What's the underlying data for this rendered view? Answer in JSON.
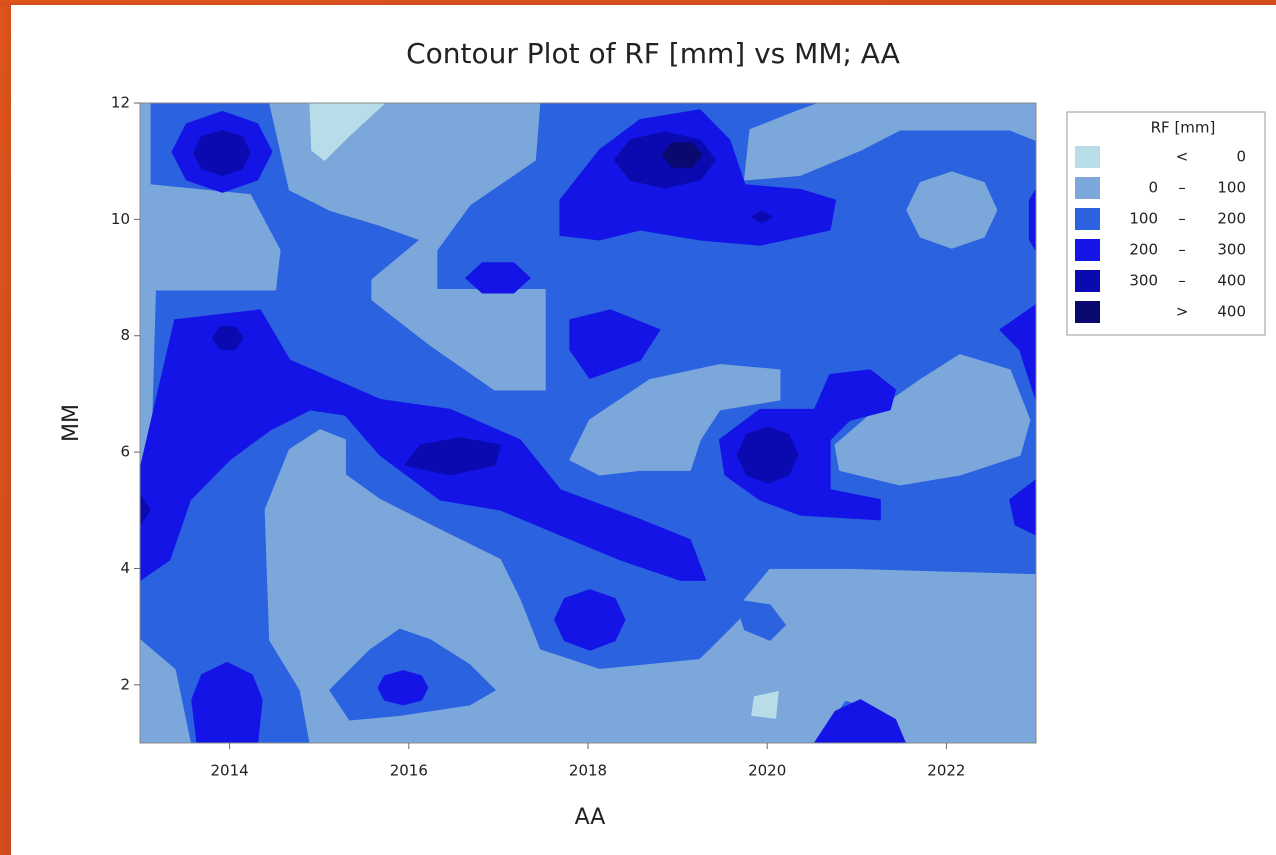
{
  "chart_data": {
    "type": "contour",
    "title": "Contour Plot of RF [mm] vs MM; AA",
    "x_label": "AA",
    "y_label": "MM",
    "xlim": [
      2013,
      2023
    ],
    "ylim": [
      1,
      12
    ],
    "xticks": [
      2014,
      2016,
      2018,
      2020,
      2022
    ],
    "yticks": [
      2,
      4,
      6,
      8,
      10,
      12
    ],
    "legend_title": "RF [mm]",
    "legend_position": "right",
    "bands": [
      {
        "color": "#b8dde8",
        "sign": "<",
        "right": 0
      },
      {
        "color": "#7ba7db",
        "left": 0,
        "sign": "–",
        "right": 100
      },
      {
        "color": "#2a62e0",
        "left": 100,
        "sign": "–",
        "right": 200
      },
      {
        "color": "#1414e6",
        "left": 200,
        "sign": "–",
        "right": 300
      },
      {
        "color": "#0a0ab0",
        "left": 300,
        "sign": "–",
        "right": 400
      },
      {
        "color": "#090970",
        "sign": ">",
        "right": 400
      }
    ],
    "regions": [
      {
        "band": 2,
        "x": [
          2013,
          2023,
          2023,
          2013
        ],
        "y": [
          1,
          1,
          12,
          12
        ]
      },
      {
        "band": 1,
        "x": [
          2013,
          2013.11,
          2013.11,
          2014.23,
          2014.56,
          2014.51,
          2013.17,
          2013.11,
          2013
        ],
        "y": [
          12,
          12,
          10.59,
          10.42,
          9.47,
          8.79,
          8.79,
          5.52,
          5.52
        ]
      },
      {
        "band": 1,
        "x": [
          2014.45,
          2017.46,
          2017.41,
          2016.68,
          2016.31,
          2016.31,
          2017.52,
          2017.52,
          2016.96,
          2016.24,
          2015.59,
          2015.59,
          2016.13,
          2015.68,
          2015.12,
          2014.67
        ],
        "y": [
          12,
          12,
          11.02,
          10.25,
          9.47,
          8.79,
          8.79,
          7.07,
          7.07,
          7.84,
          8.62,
          8.96,
          9.65,
          9.9,
          10.16,
          10.51
        ]
      },
      {
        "band": 0,
        "x": [
          2014.9,
          2015.73,
          2015.34,
          2015.06,
          2014.92
        ],
        "y": [
          12,
          12,
          11.45,
          11.02,
          11.19
        ]
      },
      {
        "band": 1,
        "x": [
          2019.75,
          2019.81,
          2020.37,
          2020.59,
          2023,
          2023,
          2022.71,
          2021.48,
          2021.04,
          2020.37
        ],
        "y": [
          10.68,
          11.54,
          11.88,
          12,
          12,
          11.36,
          11.54,
          11.54,
          11.19,
          10.76
        ]
      },
      {
        "band": 1,
        "x": [
          2022.56,
          2022.42,
          2022.06,
          2021.71,
          2021.56,
          2021.71,
          2022.06,
          2022.42
        ],
        "y": [
          10.16,
          10.63,
          10.81,
          10.63,
          10.16,
          9.7,
          9.51,
          9.7
        ]
      },
      {
        "band": 1,
        "x": [
          2017.8,
          2018.02,
          2018.69,
          2019.47,
          2020.14,
          2020.14,
          2019.47,
          2019.25,
          2019.14,
          2018.58,
          2018.13
        ],
        "y": [
          5.87,
          6.55,
          7.24,
          7.5,
          7.41,
          6.9,
          6.73,
          6.21,
          5.69,
          5.69,
          5.61
        ]
      },
      {
        "band": 1,
        "x": [
          2020.76,
          2021.15,
          2021.71,
          2022.15,
          2022.71,
          2022.93,
          2022.82,
          2022.15,
          2021.48,
          2020.81
        ],
        "y": [
          6.12,
          6.64,
          7.24,
          7.67,
          7.41,
          6.55,
          5.95,
          5.61,
          5.44,
          5.69
        ]
      },
      {
        "band": 1,
        "x": [
          2014.4,
          2014.67,
          2015.01,
          2015.29,
          2015.29,
          2015.68,
          2016.35,
          2017.02,
          2017.24,
          2017.46,
          2018.13,
          2019.25,
          2019.7,
          2019.75,
          2020.03,
          2020.92,
          2023,
          2023,
          2021.54,
          2021.26,
          2020.87,
          2020.53,
          2014.9,
          2014.79,
          2014.45
        ],
        "y": [
          5.01,
          6.04,
          6.38,
          6.21,
          5.61,
          5.18,
          4.66,
          4.15,
          3.46,
          2.6,
          2.26,
          2.43,
          3.12,
          3.46,
          3.98,
          3.98,
          3.89,
          1,
          1,
          1.57,
          1.74,
          1,
          1,
          1.91,
          2.77
        ]
      },
      {
        "band": 1,
        "x": [
          2013,
          2013.39,
          2013.56,
          2013
        ],
        "y": [
          2.77,
          2.26,
          1,
          1
        ]
      },
      {
        "band": 2,
        "x": [
          2015.12,
          2015.57,
          2015.9,
          2016.24,
          2016.68,
          2016.96,
          2016.68,
          2015.9,
          2015.34
        ],
        "y": [
          1.91,
          2.6,
          2.95,
          2.77,
          2.34,
          1.91,
          1.66,
          1.48,
          1.4
        ]
      },
      {
        "band": 3,
        "x": [
          2016.21,
          2016.14,
          2015.94,
          2015.73,
          2015.66,
          2015.73,
          2015.94,
          2016.14
        ],
        "y": [
          1.95,
          2.15,
          2.24,
          2.15,
          1.95,
          1.74,
          1.66,
          1.74
        ]
      },
      {
        "band": 2,
        "x": [
          2019.64,
          2020.03,
          2020.2,
          2020.03,
          2019.75
        ],
        "y": [
          3.46,
          3.37,
          3.03,
          2.77,
          2.95
        ]
      },
      {
        "band": 0,
        "x": [
          2019.86,
          2020.12,
          2020.09,
          2019.83
        ],
        "y": [
          1.79,
          1.88,
          1.43,
          1.48
        ]
      },
      {
        "band": 3,
        "x": [
          2014.47,
          2014.31,
          2013.92,
          2013.52,
          2013.36,
          2013.52,
          2013.92,
          2014.31
        ],
        "y": [
          11.16,
          11.64,
          11.85,
          11.64,
          11.16,
          10.68,
          10.47,
          10.68
        ]
      },
      {
        "band": 4,
        "x": [
          2014.23,
          2014.14,
          2013.92,
          2013.69,
          2013.6,
          2013.69,
          2013.92,
          2014.14
        ],
        "y": [
          11.14,
          11.42,
          11.52,
          11.42,
          11.14,
          10.87,
          10.76,
          10.87
        ]
      },
      {
        "band": 3,
        "x": [
          2013,
          2013.39,
          2014.34,
          2014.67,
          2015.68,
          2016.46,
          2017.24,
          2017.69,
          2018.58,
          2019.14,
          2019.31,
          2019.03,
          2018.36,
          2017.69,
          2017.02,
          2016.35,
          2015.68,
          2015.29,
          2014.9,
          2014.45,
          2014,
          2013.56,
          2013.33,
          2013
        ],
        "y": [
          5.69,
          8.27,
          8.44,
          7.58,
          6.9,
          6.73,
          6.21,
          5.35,
          4.84,
          4.49,
          3.8,
          3.8,
          4.15,
          4.58,
          5.01,
          5.18,
          5.95,
          6.64,
          6.73,
          6.38,
          5.87,
          5.18,
          4.15,
          3.8
        ]
      },
      {
        "band": 4,
        "x": [
          2014.15,
          2014.06,
          2013.9,
          2013.81,
          2013.9,
          2014.06
        ],
        "y": [
          7.96,
          8.15,
          8.15,
          7.96,
          7.77,
          7.77
        ]
      },
      {
        "band": 4,
        "x": [
          2015.96,
          2016.13,
          2016.57,
          2017.02,
          2016.96,
          2016.46
        ],
        "y": [
          5.78,
          6.12,
          6.24,
          6.12,
          5.78,
          5.61
        ]
      },
      {
        "band": 4,
        "x": [
          2013,
          2013.11,
          2013
        ],
        "y": [
          5.26,
          5.01,
          4.75
        ]
      },
      {
        "band": 3,
        "x": [
          2017.69,
          2018.13,
          2018.58,
          2019.25,
          2019.58,
          2019.75,
          2020.37,
          2020.76,
          2020.7,
          2019.92,
          2019.25,
          2018.58,
          2018.13,
          2017.69
        ],
        "y": [
          10.33,
          11.19,
          11.71,
          11.88,
          11.36,
          10.59,
          10.51,
          10.33,
          9.82,
          9.56,
          9.65,
          9.82,
          9.65,
          9.73
        ]
      },
      {
        "band": 4,
        "x": [
          2019.42,
          2019.25,
          2018.86,
          2018.47,
          2018.3,
          2018.47,
          2018.86,
          2019.25
        ],
        "y": [
          11.02,
          11.36,
          11.5,
          11.36,
          11.02,
          10.68,
          10.54,
          10.68
        ]
      },
      {
        "band": 5,
        "x": [
          2019.27,
          2019.16,
          2018.94,
          2018.83,
          2018.94,
          2019.16
        ],
        "y": [
          11.11,
          11.31,
          11.31,
          11.11,
          10.9,
          10.9
        ]
      },
      {
        "band": 4,
        "x": [
          2020.05,
          2019.94,
          2019.83,
          2019.94
        ],
        "y": [
          10.04,
          10.14,
          10.04,
          9.94
        ]
      },
      {
        "band": 3,
        "x": [
          2017.35,
          2017.17,
          2016.82,
          2016.64,
          2016.82,
          2017.17
        ],
        "y": [
          8.99,
          9.25,
          9.25,
          8.99,
          8.74,
          8.74
        ]
      },
      {
        "band": 3,
        "x": [
          2017.8,
          2018.25,
          2018.8,
          2018.58,
          2018.02,
          2017.8
        ],
        "y": [
          8.27,
          8.44,
          8.1,
          7.58,
          7.27,
          7.76
        ]
      },
      {
        "band": 3,
        "x": [
          2019.47,
          2019.92,
          2020.53,
          2020.7,
          2021.15,
          2021.43,
          2021.37,
          2020.92,
          2020.7,
          2020.7,
          2021.26,
          2021.26,
          2020.37,
          2019.92,
          2019.53
        ],
        "y": [
          6.21,
          6.73,
          6.73,
          7.33,
          7.41,
          7.07,
          6.73,
          6.55,
          6.21,
          5.35,
          5.18,
          4.84,
          4.92,
          5.18,
          5.61
        ]
      },
      {
        "band": 4,
        "x": [
          2020.34,
          2020.24,
          2020.01,
          2019.77,
          2019.67,
          2019.77,
          2020.01,
          2020.24
        ],
        "y": [
          5.95,
          6.3,
          6.43,
          6.3,
          5.95,
          5.61,
          5.47,
          5.61
        ]
      },
      {
        "band": 3,
        "x": [
          2023,
          2023,
          2022.82,
          2022.6
        ],
        "y": [
          8.53,
          6.9,
          7.76,
          8.1
        ]
      },
      {
        "band": 3,
        "x": [
          2023,
          2023,
          2022.77,
          2022.71
        ],
        "y": [
          5.52,
          4.58,
          4.75,
          5.18
        ]
      },
      {
        "band": 3,
        "x": [
          2018.41,
          2018.3,
          2018.02,
          2017.74,
          2017.63,
          2017.74,
          2018.02,
          2018.3
        ],
        "y": [
          3.12,
          3.48,
          3.63,
          3.48,
          3.12,
          2.76,
          2.6,
          2.76
        ]
      },
      {
        "band": 3,
        "x": [
          2014.36,
          2014.25,
          2013.97,
          2013.69,
          2013.58,
          2013.64,
          2014.31
        ],
        "y": [
          1.74,
          2.17,
          2.38,
          2.17,
          1.74,
          1,
          1
        ]
      },
      {
        "band": 3,
        "x": [
          2020.53,
          2020.76,
          2021.04,
          2021.43,
          2021.54
        ],
        "y": [
          1,
          1.54,
          1.74,
          1.4,
          1
        ]
      },
      {
        "band": 3,
        "x": [
          2022.93,
          2023,
          2023,
          2022.93
        ],
        "y": [
          10.33,
          10.51,
          9.47,
          9.65
        ]
      }
    ]
  }
}
